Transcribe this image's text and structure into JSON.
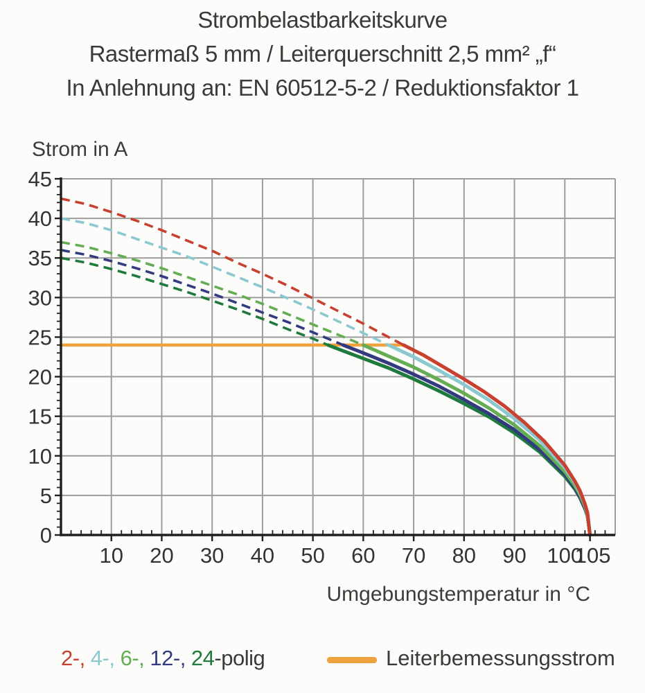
{
  "title": {
    "line1": "Strombelastbarkeitskurve",
    "line2": "Rastermaß 5 mm / Leiterquerschnitt 2,5 mm² „f“",
    "line3": "In Anlehnung an: EN 60512-5-2 / Reduktionsfaktor 1"
  },
  "legend": {
    "poles": [
      {
        "label": "2-",
        "color": "#c8402f"
      },
      {
        "label": "4-",
        "color": "#8cc8d0"
      },
      {
        "label": "6-",
        "color": "#64ad52"
      },
      {
        "label": "12-",
        "color": "#343a80"
      },
      {
        "label": "24",
        "color": "#1f7a3d"
      }
    ],
    "separator": ", ",
    "suffix": "-polig",
    "suffix_color": "#3a3a38"
  },
  "colors": {
    "grid": "#9c9c9c",
    "axis": "#1f1f1d",
    "tick_text": "#333331"
  },
  "chart_data": {
    "type": "line",
    "title": "Strombelastbarkeitskurve",
    "subtitle1": "Rastermaß 5 mm / Leiterquerschnitt 2,5 mm² „f“",
    "subtitle2": "In Anlehnung an: EN 60512-5-2 / Reduktionsfaktor 1",
    "grid": true,
    "legend_position": "bottom",
    "x_axis": {
      "label": "Umgebungstemperatur in °C",
      "min": 0,
      "max": 110,
      "major_ticks": [
        10,
        20,
        30,
        40,
        50,
        60,
        70,
        80,
        90,
        100,
        105
      ],
      "gridline_step": 10,
      "minor_tick_step": 2
    },
    "y_axis": {
      "label": "Strom in A",
      "min": 0,
      "max": 45,
      "major_ticks": [
        0,
        5,
        10,
        15,
        20,
        25,
        30,
        35,
        40,
        45
      ],
      "gridline_step": 5,
      "minor_tick_step": 1
    },
    "rated_current": {
      "name": "Leiterbemessungsstrom",
      "value": 24,
      "t_start": 0,
      "t_end": 68,
      "color": "#f0a23f"
    },
    "series": [
      {
        "name": "2-polig",
        "color": "#c8402f",
        "dashed_points": [
          [
            0,
            42.5
          ],
          [
            5,
            41.8
          ],
          [
            10,
            40.8
          ],
          [
            15,
            39.7
          ],
          [
            20,
            38.5
          ],
          [
            25,
            37.2
          ],
          [
            30,
            35.9
          ],
          [
            35,
            34.4
          ],
          [
            40,
            33.0
          ],
          [
            45,
            31.5
          ],
          [
            50,
            29.9
          ],
          [
            55,
            28.3
          ],
          [
            60,
            26.7
          ],
          [
            65,
            25.0
          ],
          [
            68,
            24
          ]
        ],
        "solid_points": [
          [
            68,
            24
          ],
          [
            72,
            22.7
          ],
          [
            76,
            21.2
          ],
          [
            80,
            19.7
          ],
          [
            84,
            18.1
          ],
          [
            88,
            16.3
          ],
          [
            92,
            14.2
          ],
          [
            96,
            11.8
          ],
          [
            100,
            8.8
          ],
          [
            102,
            6.8
          ],
          [
            103,
            5.6
          ],
          [
            104,
            3.9
          ],
          [
            104.5,
            2.8
          ],
          [
            105,
            0
          ]
        ]
      },
      {
        "name": "4-polig",
        "color": "#8cc8d0",
        "dashed_points": [
          [
            0,
            40
          ],
          [
            5,
            39.4
          ],
          [
            10,
            38.5
          ],
          [
            15,
            37.4
          ],
          [
            20,
            36.3
          ],
          [
            25,
            35.2
          ],
          [
            30,
            33.9
          ],
          [
            35,
            32.6
          ],
          [
            40,
            31.3
          ],
          [
            45,
            29.9
          ],
          [
            50,
            28.5
          ],
          [
            55,
            27.0
          ],
          [
            60,
            25.5
          ],
          [
            65,
            24
          ]
        ],
        "solid_points": [
          [
            65,
            24
          ],
          [
            70,
            22.5
          ],
          [
            75,
            20.8
          ],
          [
            80,
            19.0
          ],
          [
            85,
            17.0
          ],
          [
            90,
            14.7
          ],
          [
            95,
            12.0
          ],
          [
            100,
            8.5
          ],
          [
            102,
            6.6
          ],
          [
            103,
            5.4
          ],
          [
            104,
            3.8
          ],
          [
            104.5,
            2.7
          ],
          [
            105,
            0
          ]
        ]
      },
      {
        "name": "6-polig",
        "color": "#64ad52",
        "dashed_points": [
          [
            0,
            37
          ],
          [
            5,
            36.4
          ],
          [
            10,
            35.6
          ],
          [
            15,
            34.7
          ],
          [
            20,
            33.7
          ],
          [
            25,
            32.6
          ],
          [
            30,
            31.5
          ],
          [
            35,
            30.4
          ],
          [
            40,
            29.2
          ],
          [
            45,
            27.9
          ],
          [
            50,
            26.6
          ],
          [
            55,
            25.3
          ],
          [
            60,
            24
          ]
        ],
        "solid_points": [
          [
            60,
            24
          ],
          [
            65,
            22.6
          ],
          [
            70,
            21.2
          ],
          [
            75,
            19.6
          ],
          [
            80,
            17.9
          ],
          [
            85,
            16.0
          ],
          [
            90,
            13.9
          ],
          [
            95,
            11.3
          ],
          [
            100,
            8.0
          ],
          [
            102,
            6.2
          ],
          [
            103,
            5.1
          ],
          [
            104,
            3.6
          ],
          [
            104.5,
            2.5
          ],
          [
            105,
            0
          ]
        ]
      },
      {
        "name": "12-polig",
        "color": "#343a80",
        "dashed_points": [
          [
            0,
            36
          ],
          [
            5,
            35.4
          ],
          [
            10,
            34.6
          ],
          [
            15,
            33.7
          ],
          [
            20,
            32.7
          ],
          [
            25,
            31.6
          ],
          [
            30,
            30.5
          ],
          [
            35,
            29.3
          ],
          [
            40,
            28.1
          ],
          [
            45,
            26.9
          ],
          [
            50,
            25.6
          ],
          [
            56,
            24
          ]
        ],
        "solid_points": [
          [
            56,
            24
          ],
          [
            60,
            23.0
          ],
          [
            65,
            21.7
          ],
          [
            70,
            20.3
          ],
          [
            75,
            18.8
          ],
          [
            80,
            17.1
          ],
          [
            85,
            15.3
          ],
          [
            90,
            13.3
          ],
          [
            95,
            10.8
          ],
          [
            100,
            7.7
          ],
          [
            102,
            5.9
          ],
          [
            103,
            4.8
          ],
          [
            104,
            3.4
          ],
          [
            104.5,
            2.4
          ],
          [
            105,
            0
          ]
        ]
      },
      {
        "name": "24-polig",
        "color": "#1f7a3d",
        "dashed_points": [
          [
            0,
            35
          ],
          [
            5,
            34.4
          ],
          [
            10,
            33.6
          ],
          [
            15,
            32.7
          ],
          [
            20,
            31.7
          ],
          [
            25,
            30.7
          ],
          [
            30,
            29.6
          ],
          [
            35,
            28.5
          ],
          [
            40,
            27.3
          ],
          [
            45,
            26.0
          ],
          [
            50,
            24.8
          ],
          [
            53,
            24
          ]
        ],
        "solid_points": [
          [
            53,
            24
          ],
          [
            55,
            23.5
          ],
          [
            60,
            22.3
          ],
          [
            65,
            21.1
          ],
          [
            70,
            19.7
          ],
          [
            75,
            18.2
          ],
          [
            80,
            16.6
          ],
          [
            85,
            14.9
          ],
          [
            90,
            12.9
          ],
          [
            95,
            10.5
          ],
          [
            100,
            7.4
          ],
          [
            102,
            5.8
          ],
          [
            103,
            4.7
          ],
          [
            104,
            3.3
          ],
          [
            104.5,
            2.4
          ],
          [
            105,
            0
          ]
        ]
      }
    ]
  }
}
